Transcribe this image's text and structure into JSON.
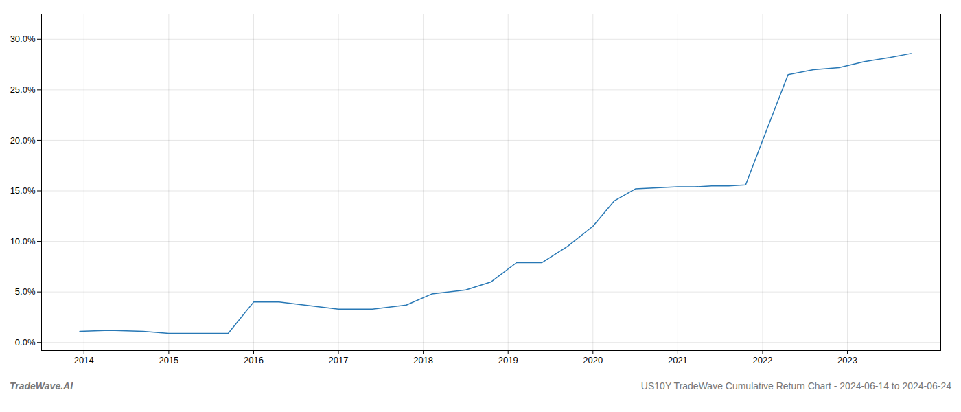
{
  "chart_data": {
    "type": "line",
    "title": "US10Y TradeWave Cumulative Return Chart - 2024-06-14 to 2024-06-24",
    "annotations": [
      "TradeWave.AI"
    ],
    "x": [
      2013.95,
      2014.3,
      2014.7,
      2015.0,
      2015.4,
      2015.7,
      2016.0,
      2016.3,
      2016.6,
      2017.0,
      2017.4,
      2017.8,
      2018.1,
      2018.5,
      2018.8,
      2019.1,
      2019.4,
      2019.7,
      2020.0,
      2020.25,
      2020.5,
      2020.75,
      2021.0,
      2021.2,
      2021.4,
      2021.6,
      2021.8,
      2022.0,
      2022.3,
      2022.6,
      2022.9,
      2023.2,
      2023.5,
      2023.75
    ],
    "values": [
      0.011,
      0.012,
      0.011,
      0.009,
      0.009,
      0.009,
      0.04,
      0.04,
      0.037,
      0.033,
      0.033,
      0.037,
      0.048,
      0.052,
      0.06,
      0.079,
      0.079,
      0.095,
      0.115,
      0.14,
      0.152,
      0.153,
      0.154,
      0.154,
      0.155,
      0.155,
      0.156,
      0.2,
      0.265,
      0.27,
      0.272,
      0.278,
      0.282,
      0.286
    ],
    "color": "#2878b5",
    "xlim": [
      2013.5,
      2024.1
    ],
    "xticks": [
      2014,
      2015,
      2016,
      2017,
      2018,
      2019,
      2020,
      2021,
      2022,
      2023
    ],
    "ylim": [
      -0.008,
      0.325
    ],
    "yticks": [
      {
        "value": 0.0,
        "label": "0.0%"
      },
      {
        "value": 0.05,
        "label": "5.0%"
      },
      {
        "value": 0.1,
        "label": "10.0%"
      },
      {
        "value": 0.15,
        "label": "15.0%"
      },
      {
        "value": 0.2,
        "label": "20.0%"
      },
      {
        "value": 0.25,
        "label": "25.0%"
      },
      {
        "value": 0.3,
        "label": "30.0%"
      }
    ],
    "grid": true
  }
}
